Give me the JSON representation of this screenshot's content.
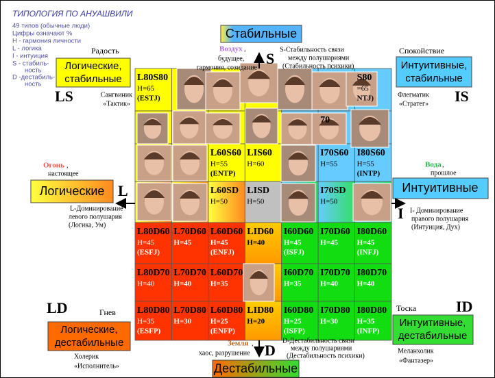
{
  "legend": {
    "title": "ТИПОЛОГИЯ ПО АНУАШВИЛИ",
    "lines": [
      "49 типов (обычные люди)",
      "Цифры означают %",
      "H - гармония личности",
      "L - логика",
      "I - интуиция",
      "S - стабиль-",
      "ность",
      "D -дестабиль-",
      "ность"
    ]
  },
  "axes": {
    "top": {
      "title": "Стабильные",
      "letter": "S",
      "element": "Воздух",
      "element_lines": [
        "будущее,",
        "гармония, созидание"
      ],
      "desc": [
        "S-Стабильность связи",
        "между полушариями",
        "(Стабильность психики)"
      ]
    },
    "left": {
      "title": "Логические",
      "letter": "L",
      "element": "Огонь",
      "element_lines": [
        "настоящее"
      ],
      "desc": [
        "L-Доминирование",
        "левого полушария",
        "(Логика, Ум)"
      ]
    },
    "right": {
      "title": "Интуитивные",
      "letter": "I",
      "element": "Вода",
      "element_lines": [
        "прошлое"
      ],
      "desc": [
        "I- Доминирование",
        "правого полушария",
        "(Интуиция, Дух)"
      ]
    },
    "bottom": {
      "title": "Дестабильные",
      "letter": "D",
      "element": "Земля",
      "element_lines": [
        "хаос, разрушение"
      ],
      "desc": [
        "D-Дестабильность связи",
        "между полушариями",
        "(Дестабильность психики)"
      ]
    }
  },
  "quadrants": [
    {
      "emotion": "Радость",
      "title_lines": [
        "Логические,",
        "стабильные"
      ],
      "code": "LS",
      "temperament": [
        "Сангвиник",
        "«Тактик»"
      ]
    },
    {
      "emotion": "Спокойствие",
      "title_lines": [
        "Интуитивные,",
        "стабильные"
      ],
      "code": "IS",
      "temperament": [
        "Флегматик",
        "«Стратег»"
      ]
    },
    {
      "emotion": "Гнев",
      "title_lines": [
        "Логические,",
        "дестабильные"
      ],
      "code": "LD",
      "temperament": [
        "Холерик",
        "«Исполнитель»"
      ]
    },
    {
      "emotion": "Тоска",
      "title_lines": [
        "Интуитивные,",
        "дестабильные"
      ],
      "code": "ID",
      "temperament": [
        "Меланхолик",
        "«Фантазер»"
      ]
    }
  ],
  "grid": {
    "rows": [
      [
        {
          "code": "L80S80",
          "h": "H=65",
          "mbti": "(ESTJ)"
        },
        null,
        null,
        null,
        null,
        null,
        {
          "code": "S80",
          "h": "=65",
          "mbti": "NTJ)"
        }
      ],
      [
        null,
        null,
        null,
        null,
        null,
        {
          "code": "70"
        },
        null
      ],
      [
        null,
        null,
        {
          "code": "L60S60",
          "h": "H=55",
          "mbti": "(ENTP)"
        },
        {
          "code": "LIS60",
          "h": "H=60"
        },
        null,
        {
          "code": "I70S60",
          "h": "H=55"
        },
        {
          "code": "I80S60",
          "h": "H=55",
          "mbti": "(INTP)"
        }
      ],
      [
        null,
        null,
        {
          "code": "L60SD",
          "h": "H=50"
        },
        {
          "code": "LISD",
          "h": "H=50"
        },
        null,
        {
          "code": "I70SD",
          "h": "H=50"
        },
        null
      ],
      [
        {
          "code": "L80D60",
          "h": "H=45",
          "mbti": "(ESFJ)"
        },
        {
          "code": "L70D60",
          "h": "H=45"
        },
        {
          "code": "L60D60",
          "h": "H=45",
          "mbti": "(ENFJ)"
        },
        {
          "code": "LID60",
          "h": "H=40"
        },
        {
          "code": "I60D60",
          "h": "H=45",
          "mbti": "(ISFJ)"
        },
        {
          "code": "I70D60",
          "h": "H=45"
        },
        {
          "code": "I80D60",
          "h": "H=45",
          "mbti": "(INFJ)"
        }
      ],
      [
        {
          "code": "L80D70",
          "h": "H=40"
        },
        {
          "code": "L70D70",
          "h": "H=40"
        },
        {
          "code": "L60D70",
          "h": "H=35"
        },
        null,
        {
          "code": "I60D70",
          "h": "H=35"
        },
        {
          "code": "I70D70",
          "h": "H=40"
        },
        {
          "code": "I80D70",
          "h": "H=40"
        }
      ],
      [
        {
          "code": "L80D80",
          "h": "H=35",
          "mbti": "(ESFP)"
        },
        {
          "code": "L70D80",
          "h": "H=30"
        },
        {
          "code": "L60D80",
          "h": "H=25",
          "mbti": "(ENFP)"
        },
        {
          "code": "LID80",
          "h": "H=20"
        },
        {
          "code": "I60D80",
          "h": "H=25",
          "mbti": "(ISFP)"
        },
        {
          "code": "I70D80",
          "h": "H=30"
        },
        {
          "code": "I80D80",
          "h": "H=35",
          "mbti": "(INFP)"
        }
      ]
    ]
  }
}
